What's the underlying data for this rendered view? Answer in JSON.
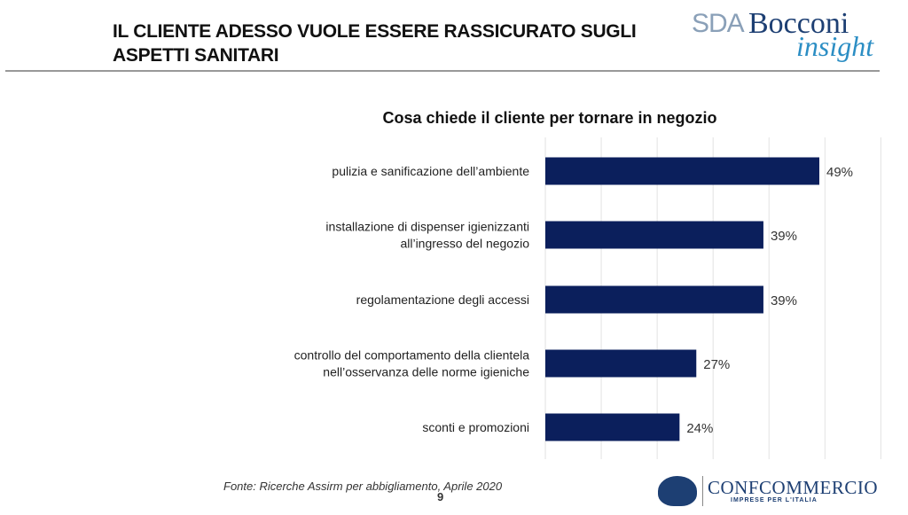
{
  "header": {
    "title_line1": "IL CLIENTE ADESSO VUOLE ESSERE RASSICURATO SUGLI",
    "title_line2": "ASPETTI SANITARI",
    "logo_text": "SDA Bocconi insight"
  },
  "chart_data": {
    "type": "bar",
    "orientation": "horizontal",
    "title": "Cosa chiede il cliente per tornare in negozio",
    "categories": [
      [
        "pulizia e sanificazione dell’ambiente"
      ],
      [
        "installazione di dispenser igienizzanti",
        "all’ingresso del negozio"
      ],
      [
        "regolamentazione degli accessi"
      ],
      [
        "controllo del comportamento della clientela",
        "nell’osservanza delle norme igieniche"
      ],
      [
        "sconti e promozioni"
      ]
    ],
    "values": [
      49,
      39,
      39,
      27,
      24
    ],
    "data_labels": [
      "49%",
      "39%",
      "39%",
      "27%",
      "24%"
    ],
    "xlim": [
      0,
      60
    ],
    "grid": true,
    "bar_color": "#0b1f5c"
  },
  "footer": {
    "source": "Fonte: Ricerche  Assirm per abbigliamento, Aprile 2020",
    "page_number": "9",
    "partner_logo": "CONFCOMMERCIO",
    "partner_tagline": "IMPRESE PER L'ITALIA"
  }
}
